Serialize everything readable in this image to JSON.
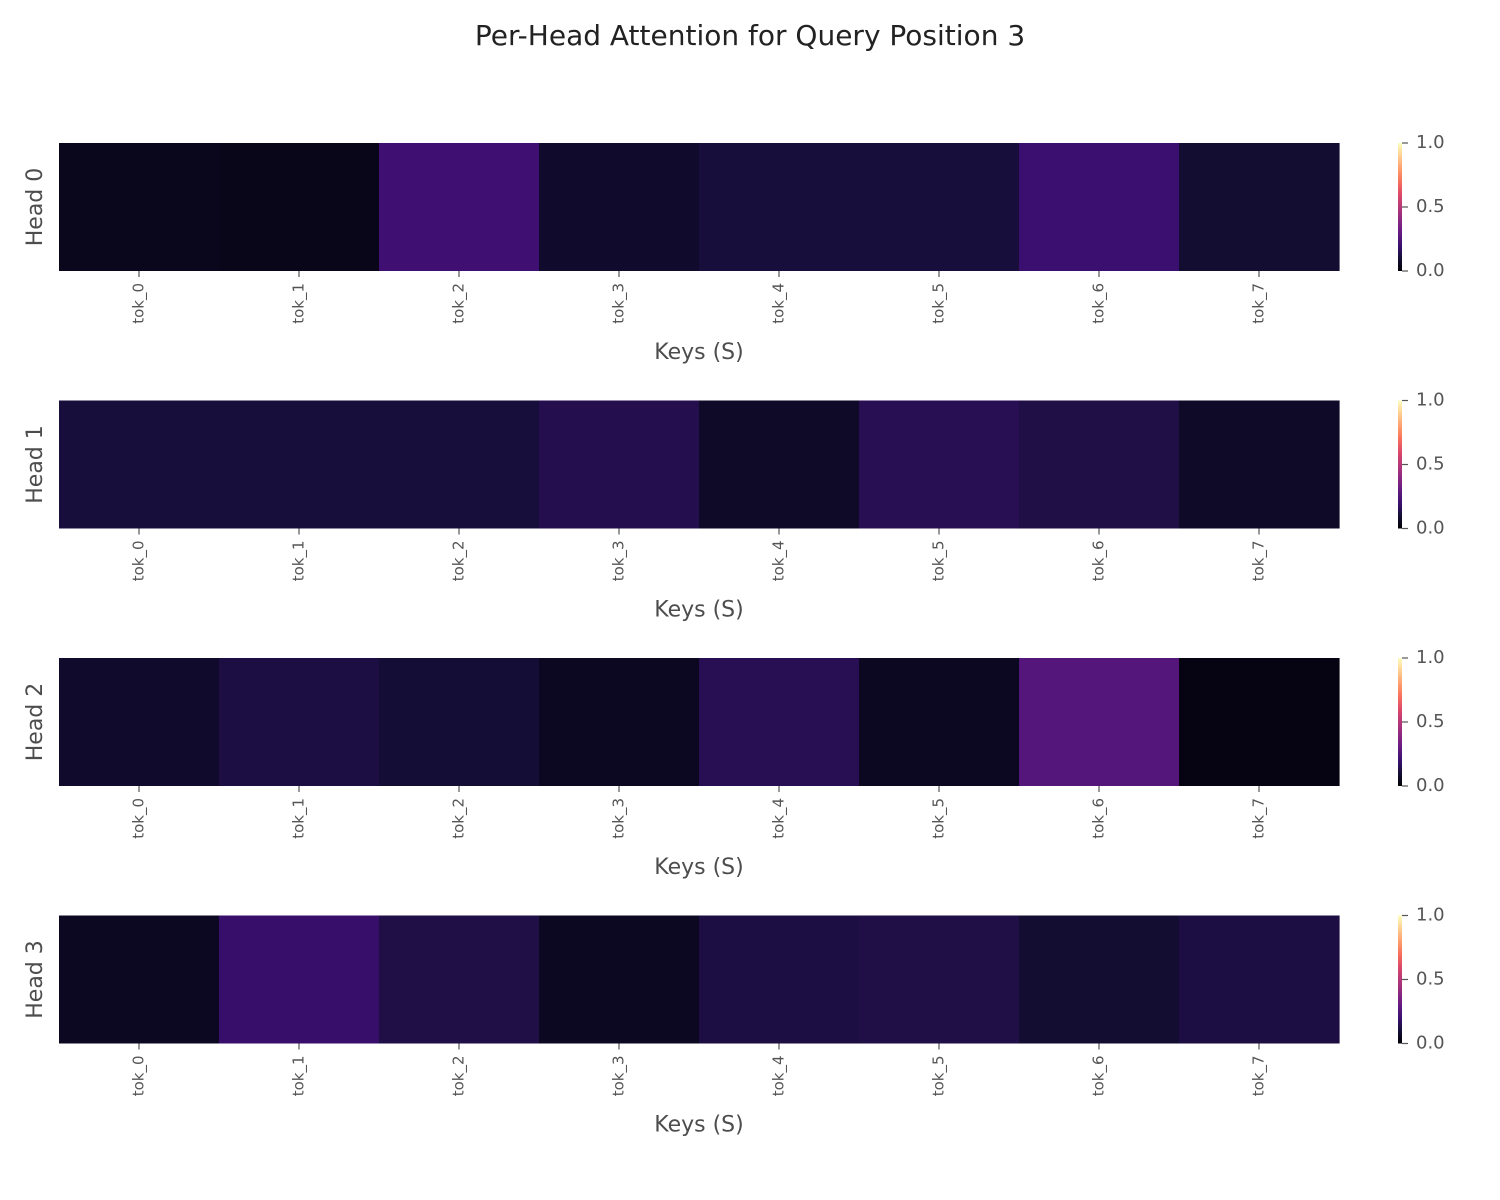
{
  "chart_data": {
    "type": "heatmap",
    "title": "Per-Head Attention for Query Position 3",
    "xlabel": "Keys (S)",
    "colormap": "magma",
    "vmin": 0.0,
    "vmax": 1.0,
    "colorbar_ticks": [
      "0.0",
      "0.5",
      "1.0"
    ],
    "tokens": [
      "tok_0",
      "tok_1",
      "tok_2",
      "tok_3",
      "tok_4",
      "tok_5",
      "tok_6",
      "tok_7"
    ],
    "heads": [
      {
        "label": "Head 0",
        "values": [
          0.05,
          0.04,
          0.21,
          0.08,
          0.11,
          0.11,
          0.2,
          0.09
        ]
      },
      {
        "label": "Head 1",
        "values": [
          0.11,
          0.11,
          0.11,
          0.14,
          0.07,
          0.15,
          0.13,
          0.07
        ]
      },
      {
        "label": "Head 2",
        "values": [
          0.08,
          0.12,
          0.1,
          0.06,
          0.15,
          0.06,
          0.26,
          0.03
        ]
      },
      {
        "label": "Head 3",
        "values": [
          0.06,
          0.19,
          0.13,
          0.06,
          0.12,
          0.13,
          0.09,
          0.12
        ]
      }
    ]
  }
}
